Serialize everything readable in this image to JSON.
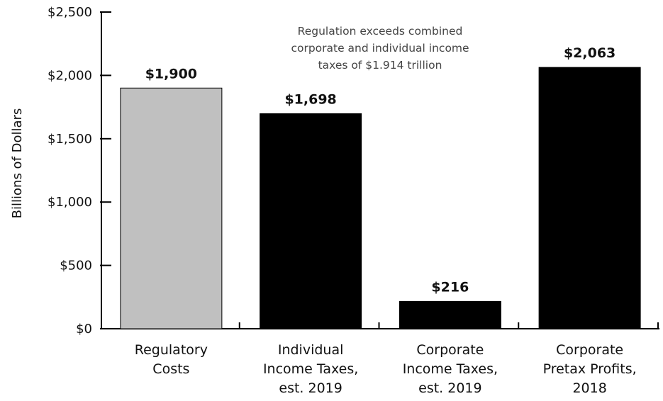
{
  "chart_data": {
    "type": "bar",
    "categories": [
      [
        "Regulatory",
        "Costs"
      ],
      [
        "Individual",
        "Income Taxes,",
        "est. 2019"
      ],
      [
        "Corporate",
        "Income Taxes,",
        "est. 2019"
      ],
      [
        "Corporate",
        "Pretax Profits,",
        "2018"
      ]
    ],
    "values": [
      1900,
      1698,
      216,
      2063
    ],
    "data_labels": [
      "$1,900",
      "$1,698",
      "$216",
      "$2,063"
    ],
    "bar_colors": [
      "#c0c0c0",
      "#000000",
      "#000000",
      "#000000"
    ],
    "ylabel": "Billions of Dollars",
    "ylim": [
      0,
      2500
    ],
    "yticks": [
      0,
      500,
      1000,
      1500,
      2000,
      2500
    ],
    "ytick_labels": [
      "$0",
      "$500",
      "$1,000",
      "$1,500",
      "$2,000",
      "$2,500"
    ],
    "annotation": [
      "Regulation exceeds combined",
      "corporate and individual income",
      "taxes of $1.914 trillion"
    ],
    "grid": false,
    "legend": "none"
  }
}
